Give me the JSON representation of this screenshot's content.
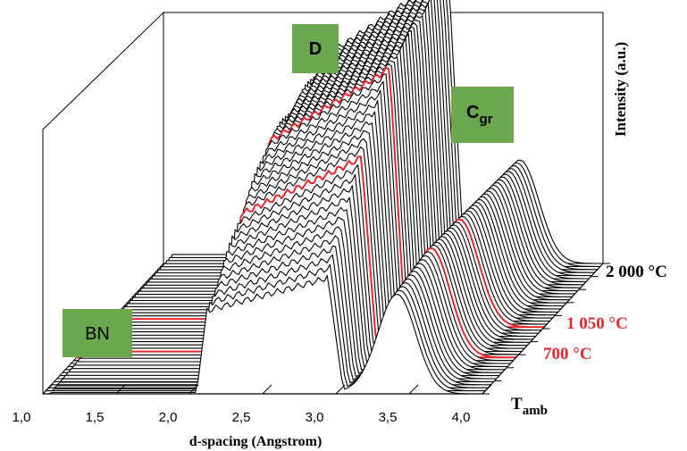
{
  "chart_data": {
    "type": "line",
    "style": "3d-waterfall",
    "xlabel": "d-spacing (Angstrom)",
    "ylabel": "Intensity (a.u.)",
    "xlim": [
      1.0,
      4.0
    ],
    "x_ticks": [
      "1,0",
      "1,5",
      "2,0",
      "2,5",
      "3,0",
      "3,5",
      "4,0"
    ],
    "z_labels": [
      {
        "text": "T",
        "sub": "amb",
        "color": "#000000"
      },
      {
        "text": "700 °C",
        "color": "#e8262d"
      },
      {
        "text": "1 050 °C",
        "color": "#e8262d"
      },
      {
        "text": "2 000 °C",
        "color": "#000000"
      }
    ],
    "peak_labels": [
      {
        "text": "BN",
        "sub": ""
      },
      {
        "text": "D",
        "sub": ""
      },
      {
        "text": "C",
        "sub": "gr"
      }
    ],
    "highlight_color": "#e8262d",
    "line_color": "#000000",
    "series": [
      {
        "label": "T",
        "peaks": {
          "BN": 0.05,
          "D": 0.36,
          "C": 1.0
        }
      },
      {
        "label": "700 °C",
        "peaks": {
          "BN": 0.22,
          "D": 0.62,
          "C": 1.08
        }
      },
      {
        "label": "1 050 °C",
        "peaks": {
          "BN": 0.3,
          "D": 0.8,
          "C": 1.05
        }
      },
      {
        "label": "2 000 °C",
        "peaks": {
          "BN": 0.33,
          "D": 0.9,
          "C": 1.0
        }
      }
    ]
  }
}
